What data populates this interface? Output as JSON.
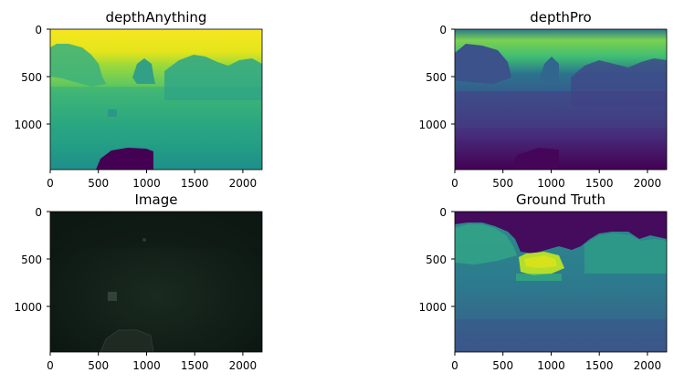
{
  "chart_data": [
    {
      "type": "heatmap",
      "title": "depthAnything",
      "colormap": "viridis",
      "xlim": [
        0,
        2200
      ],
      "ylim": [
        1480,
        0
      ],
      "xticks": [
        0,
        500,
        1000,
        1500,
        2000
      ],
      "yticks": [
        0,
        500,
        1000
      ],
      "description": "bright yellow at top (far), teal/green mid ground, dark purple blob near bottom"
    },
    {
      "type": "heatmap",
      "title": "depthPro",
      "colormap": "viridis",
      "xlim": [
        0,
        2200
      ],
      "ylim": [
        1480,
        0
      ],
      "xticks": [
        0,
        500,
        1000,
        1500,
        2000
      ],
      "yticks": [
        0,
        500,
        1000
      ],
      "description": "green-yellow band near top, dark purple/indigo lower region"
    },
    {
      "type": "heatmap",
      "title": "Image",
      "colormap": "rgb",
      "xlim": [
        0,
        2200
      ],
      "ylim": [
        1480,
        0
      ],
      "xticks": [
        0,
        500,
        1000,
        1500,
        2000
      ],
      "yticks": [
        0,
        500,
        1000
      ],
      "description": "very dark greenish underwater photograph"
    },
    {
      "type": "heatmap",
      "title": "Ground Truth",
      "colormap": "viridis",
      "xlim": [
        0,
        2200
      ],
      "ylim": [
        1480,
        0
      ],
      "xticks": [
        0,
        500,
        1000,
        1500,
        2000
      ],
      "yticks": [
        0,
        500,
        1000
      ],
      "description": "purple sky region at top, teal/blue terrain, yellow-green patch in centre"
    }
  ]
}
